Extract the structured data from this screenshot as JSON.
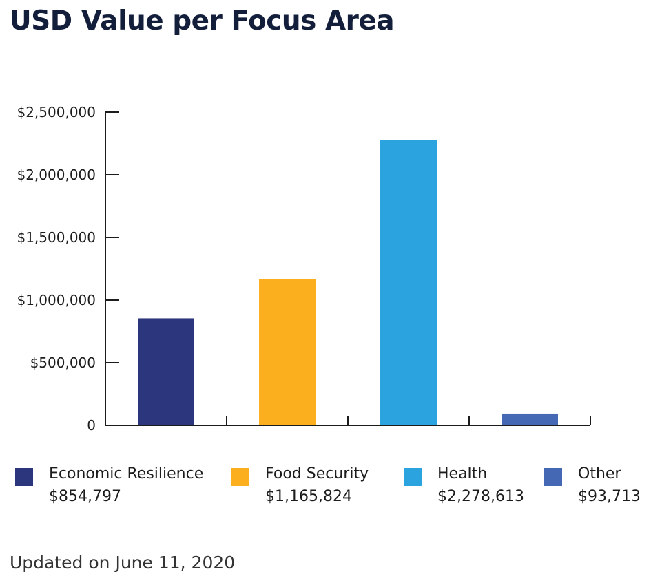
{
  "title": "USD Value per Focus Area",
  "footer": "Updated on June 11, 2020",
  "chart_data": {
    "type": "bar",
    "title": "USD Value per Focus Area",
    "xlabel": "",
    "ylabel": "",
    "ylim": [
      0,
      2500000
    ],
    "y_ticks": [
      0,
      500000,
      1000000,
      1500000,
      2000000,
      2500000
    ],
    "y_tick_labels": [
      "0",
      "$500,000",
      "$1,000,000",
      "$1,500,000",
      "$2,000,000",
      "$2,500,000"
    ],
    "categories": [
      "Economic Resilience",
      "Food Security",
      "Health",
      "Other"
    ],
    "values": [
      854797,
      1165824,
      2278613,
      93713
    ],
    "value_labels": [
      "$854,797",
      "$1,165,824",
      "$2,278,613",
      "$93,713"
    ],
    "colors": [
      "#2b367c",
      "#fbae1e",
      "#2aa3df",
      "#4468b4"
    ],
    "grid": false,
    "legend": "bottom"
  }
}
